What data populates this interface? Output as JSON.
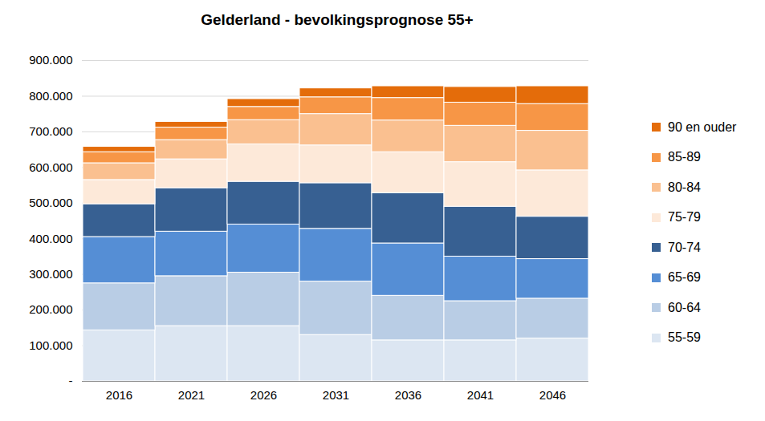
{
  "chart_data": {
    "type": "bar",
    "title": "Gelderland - bevolkingsprognose 55+",
    "stacked": true,
    "grid": true,
    "legend": "right",
    "categories": [
      "2016",
      "2021",
      "2026",
      "2031",
      "2036",
      "2041",
      "2046"
    ],
    "series": [
      {
        "name": "55-59",
        "color": "#dce6f2",
        "values": [
          143000,
          155000,
          155000,
          130000,
          115000,
          115000,
          120000
        ]
      },
      {
        "name": "60-64",
        "color": "#b9cde5",
        "values": [
          132000,
          140000,
          150000,
          150000,
          125000,
          110000,
          112000
        ]
      },
      {
        "name": "65-69",
        "color": "#558ed5",
        "values": [
          130000,
          125000,
          135000,
          148000,
          147000,
          125000,
          111000
        ]
      },
      {
        "name": "70-74",
        "color": "#376092",
        "values": [
          92000,
          122000,
          120000,
          128000,
          141000,
          140000,
          119000
        ]
      },
      {
        "name": "75-79",
        "color": "#fde9d9",
        "values": [
          68000,
          81000,
          105000,
          106000,
          115000,
          125000,
          130000
        ]
      },
      {
        "name": "80-84",
        "color": "#fac090",
        "values": [
          47000,
          54000,
          68000,
          88000,
          89000,
          102000,
          111000
        ]
      },
      {
        "name": "85-89",
        "color": "#f79646",
        "values": [
          31000,
          35000,
          37000,
          47000,
          63000,
          65000,
          75000
        ]
      },
      {
        "name": "90 en ouder",
        "color": "#e46c0a",
        "values": [
          15000,
          16000,
          22000,
          25000,
          33000,
          44000,
          50000
        ]
      }
    ],
    "ylim": [
      0,
      900000
    ],
    "yticks": [
      {
        "value": 0,
        "label": "-"
      },
      {
        "value": 100000,
        "label": "100.000"
      },
      {
        "value": 200000,
        "label": "200.000"
      },
      {
        "value": 300000,
        "label": "300.000"
      },
      {
        "value": 400000,
        "label": "400.000"
      },
      {
        "value": 500000,
        "label": "500.000"
      },
      {
        "value": 600000,
        "label": "600.000"
      },
      {
        "value": 700000,
        "label": "700.000"
      },
      {
        "value": 800000,
        "label": "800.000"
      },
      {
        "value": 900000,
        "label": "900.000"
      }
    ]
  }
}
